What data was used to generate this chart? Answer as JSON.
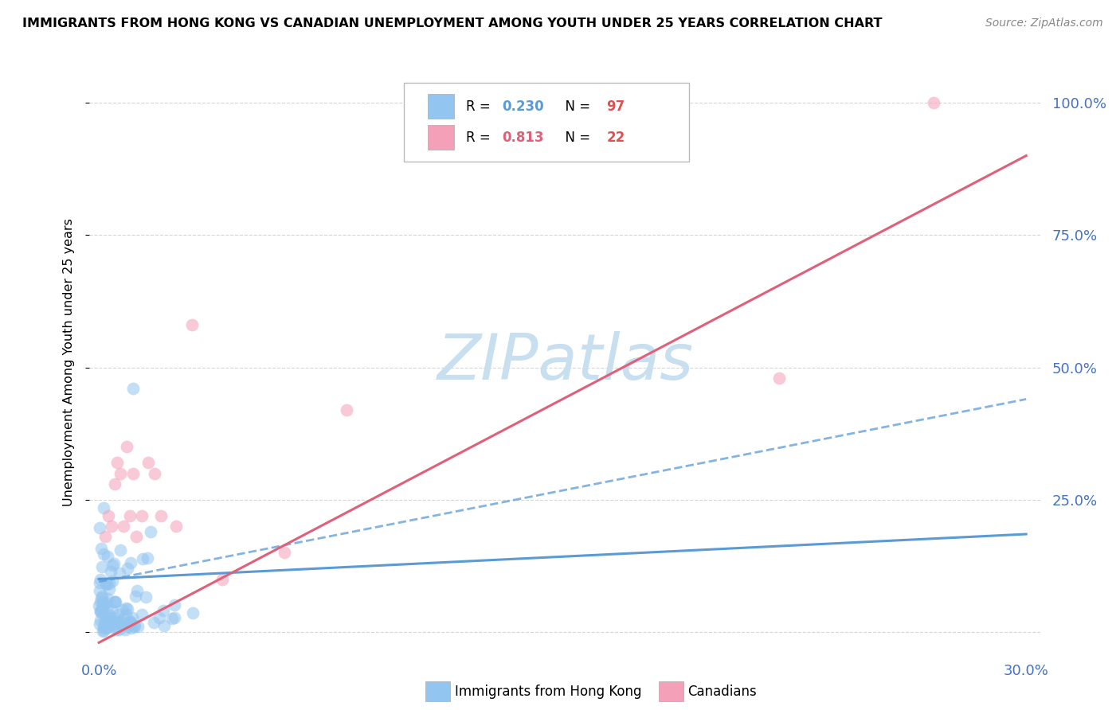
{
  "title": "IMMIGRANTS FROM HONG KONG VS CANADIAN UNEMPLOYMENT AMONG YOUTH UNDER 25 YEARS CORRELATION CHART",
  "source": "Source: ZipAtlas.com",
  "ylabel_left": "Unemployment Among Youth under 25 years",
  "legend_label1": "Immigrants from Hong Kong",
  "legend_label2": "Canadians",
  "R1": "0.230",
  "N1": "97",
  "R2": "0.813",
  "N2": "22",
  "color_blue": "#92c5f0",
  "color_pink": "#f4a0b8",
  "color_blue_dark": "#5b9bd5",
  "color_pink_dark": "#e0607a",
  "color_red_N": "#e05050",
  "watermark_color": "#c8dff0",
  "grid_color": "#cccccc",
  "tick_color": "#4472c4",
  "blue_solid_trend": [
    0.0,
    0.1,
    0.3,
    0.185
  ],
  "blue_dash_trend": [
    0.0,
    0.095,
    0.3,
    0.44
  ],
  "pink_solid_trend": [
    0.0,
    -0.02,
    0.3,
    0.9
  ],
  "xlim": [
    -0.003,
    0.305
  ],
  "ylim": [
    -0.04,
    1.06
  ],
  "xtick_positions": [
    0.0,
    0.05,
    0.1,
    0.15,
    0.2,
    0.25,
    0.3
  ],
  "xtick_labels": [
    "0.0%",
    "",
    "",
    "",
    "",
    "",
    "30.0%"
  ],
  "ytick_positions": [
    0.0,
    0.25,
    0.5,
    0.75,
    1.0
  ],
  "ytick_right_labels": [
    "",
    "25.0%",
    "50.0%",
    "75.0%",
    "100.0%"
  ]
}
